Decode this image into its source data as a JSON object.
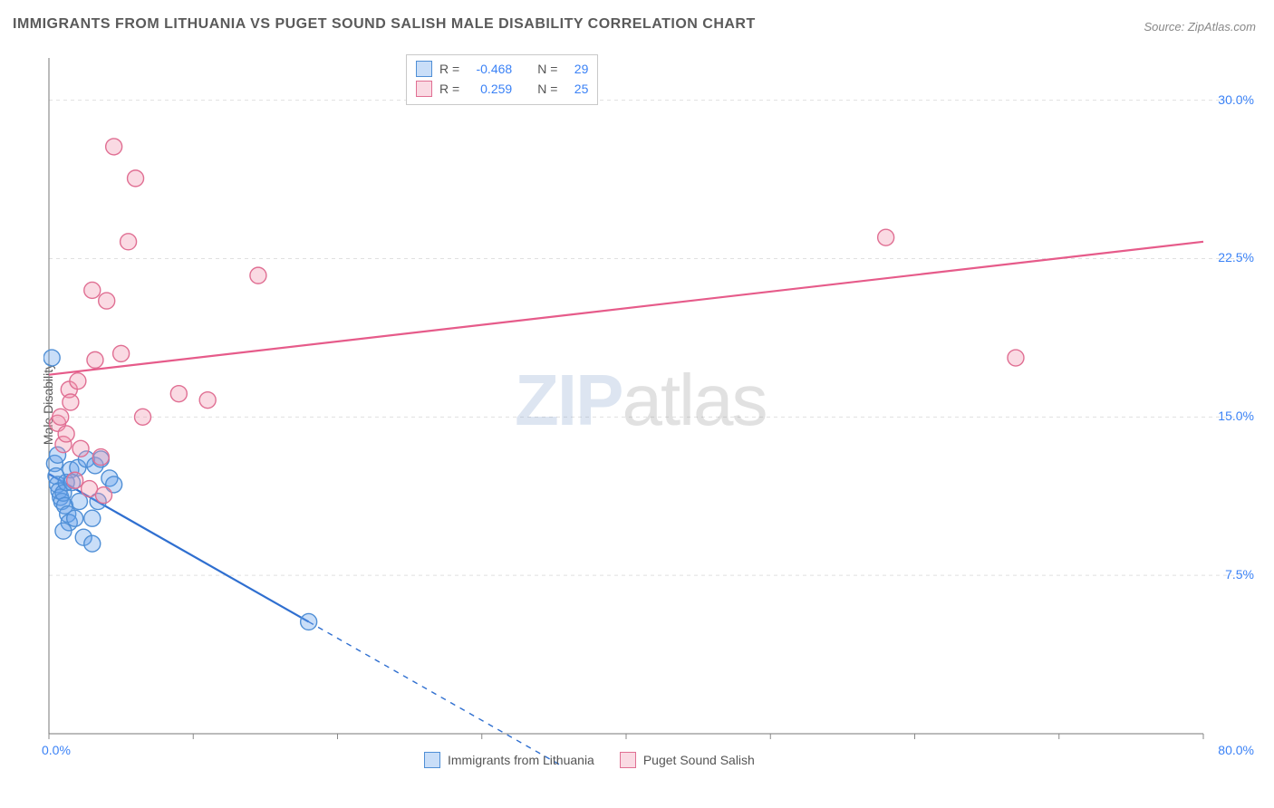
{
  "title": "IMMIGRANTS FROM LITHUANIA VS PUGET SOUND SALISH MALE DISABILITY CORRELATION CHART",
  "source_label": "Source: ",
  "source_link": "ZipAtlas.com",
  "ylabel": "Male Disability",
  "watermark_a": "ZIP",
  "watermark_b": "atlas",
  "chart": {
    "type": "scatter",
    "background_color": "#ffffff",
    "grid_color": "#e0e0e0",
    "axis_color": "#777777",
    "tick_color": "#888888",
    "xlim": [
      0,
      80
    ],
    "ylim": [
      0,
      32
    ],
    "x_ticks_major": [
      0,
      10,
      20,
      30,
      40,
      50,
      60,
      70,
      80
    ],
    "x_tick_labels": {
      "0": "0.0%",
      "80": "80.0%"
    },
    "y_gridlines": [
      7.5,
      15.0,
      22.5,
      30.0
    ],
    "y_tick_labels": {
      "7.5": "7.5%",
      "15.0": "15.0%",
      "22.5": "22.5%",
      "30.0": "30.0%"
    },
    "tick_label_color": "#3b82f6",
    "tick_label_fontsize": 14,
    "marker_radius": 9,
    "marker_stroke_width": 1.4,
    "line_width": 2.2,
    "series": [
      {
        "name": "Immigrants from Lithuania",
        "fill_color": "rgba(100,160,235,0.35)",
        "stroke_color": "#4f8fd6",
        "line_color": "#2f6fd0",
        "r": "-0.468",
        "n": "29",
        "trend": {
          "x1": 0,
          "y1": 12.3,
          "x2": 18,
          "y2": 5.3,
          "solid_until_x": 18,
          "dash_to_x": 36,
          "dash_to_y": -1.7
        },
        "points": [
          [
            0.2,
            17.8
          ],
          [
            0.4,
            12.8
          ],
          [
            0.5,
            12.2
          ],
          [
            0.6,
            11.8
          ],
          [
            0.7,
            11.5
          ],
          [
            0.8,
            11.2
          ],
          [
            0.9,
            11.0
          ],
          [
            1.0,
            11.4
          ],
          [
            1.1,
            10.8
          ],
          [
            1.2,
            11.9
          ],
          [
            1.3,
            10.4
          ],
          [
            1.4,
            10.0
          ],
          [
            1.5,
            12.5
          ],
          [
            1.6,
            11.9
          ],
          [
            1.8,
            10.2
          ],
          [
            2.0,
            12.6
          ],
          [
            2.1,
            11.0
          ],
          [
            2.4,
            9.3
          ],
          [
            2.6,
            13.0
          ],
          [
            3.0,
            10.2
          ],
          [
            3.2,
            12.7
          ],
          [
            3.4,
            11.0
          ],
          [
            3.6,
            13.0
          ],
          [
            4.2,
            12.1
          ],
          [
            4.5,
            11.8
          ],
          [
            3.0,
            9.0
          ],
          [
            1.0,
            9.6
          ],
          [
            0.6,
            13.2
          ],
          [
            18.0,
            5.3
          ]
        ]
      },
      {
        "name": "Puget Sound Salish",
        "fill_color": "rgba(240,150,175,0.35)",
        "stroke_color": "#e06f93",
        "line_color": "#e65b8a",
        "r": "0.259",
        "n": "25",
        "trend": {
          "x1": 0,
          "y1": 17.0,
          "x2": 80,
          "y2": 23.3,
          "solid_until_x": 80
        },
        "points": [
          [
            0.6,
            14.7
          ],
          [
            0.8,
            15.0
          ],
          [
            1.0,
            13.7
          ],
          [
            1.2,
            14.2
          ],
          [
            1.4,
            16.3
          ],
          [
            1.5,
            15.7
          ],
          [
            1.8,
            12.0
          ],
          [
            2.0,
            16.7
          ],
          [
            2.2,
            13.5
          ],
          [
            3.0,
            21.0
          ],
          [
            3.2,
            17.7
          ],
          [
            3.6,
            13.1
          ],
          [
            4.0,
            20.5
          ],
          [
            4.5,
            27.8
          ],
          [
            5.0,
            18.0
          ],
          [
            5.5,
            23.3
          ],
          [
            6.0,
            26.3
          ],
          [
            6.5,
            15.0
          ],
          [
            9.0,
            16.1
          ],
          [
            11.0,
            15.8
          ],
          [
            14.5,
            21.7
          ],
          [
            2.8,
            11.6
          ],
          [
            58.0,
            23.5
          ],
          [
            67.0,
            17.8
          ],
          [
            3.8,
            11.3
          ]
        ]
      }
    ]
  },
  "stats_legend": {
    "r_label": "R =",
    "n_label": "N ="
  },
  "bottom_legend": {
    "items": [
      "Immigrants from Lithuania",
      "Puget Sound Salish"
    ]
  }
}
